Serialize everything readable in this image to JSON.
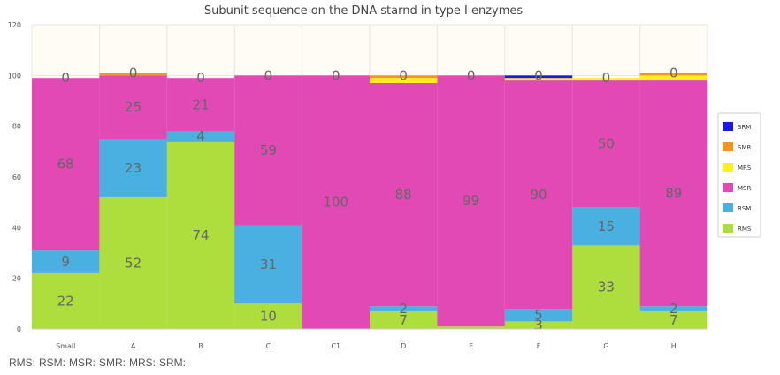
{
  "chart_data": {
    "type": "bar",
    "stacked": true,
    "title": "Subunit sequence on the DNA starnd in type I enzymes",
    "xlabel": "",
    "ylabel": "",
    "ylim": [
      0,
      120
    ],
    "yticks": [
      "0",
      "20",
      "40",
      "60",
      "80",
      "100",
      "120"
    ],
    "categories": [
      "Small",
      "A",
      "B",
      "C",
      "C1",
      "D",
      "E",
      "F",
      "G",
      "H"
    ],
    "legend_position": "right",
    "series": [
      {
        "name": "RMS",
        "color": "#aede3e",
        "values": [
          22,
          52,
          74,
          10,
          0,
          7,
          1,
          3,
          33,
          7
        ]
      },
      {
        "name": "RSM",
        "color": "#4ab0e2",
        "values": [
          9,
          23,
          4,
          31,
          0,
          2,
          0,
          5,
          15,
          2
        ]
      },
      {
        "name": "MSR",
        "color": "#e14ab4",
        "values": [
          68,
          25,
          21,
          59,
          100,
          88,
          99,
          90,
          50,
          89
        ]
      },
      {
        "name": "MRS",
        "color": "#fdf01b",
        "values": [
          0,
          0,
          0,
          0,
          0,
          2,
          0,
          1,
          1,
          2
        ]
      },
      {
        "name": "SMR",
        "color": "#f7941d",
        "values": [
          0,
          1,
          0,
          0,
          0,
          1,
          0,
          0,
          0,
          1
        ]
      },
      {
        "name": "SRM",
        "color": "#1a1ae0",
        "values": [
          0,
          0,
          0,
          0,
          0,
          0,
          0,
          1,
          0,
          0
        ]
      }
    ],
    "labels": [
      {
        "series": "RMS",
        "values": [
          "22",
          "52",
          "74",
          "10",
          "",
          "7",
          "",
          "3",
          "33",
          "7"
        ]
      },
      {
        "series": "RSM",
        "values": [
          "9",
          "23",
          "4",
          "31",
          "",
          "2",
          "",
          "5",
          "15",
          "2"
        ]
      },
      {
        "series": "MSR",
        "values": [
          "68",
          "25",
          "21",
          "59",
          "100",
          "88",
          "99",
          "90",
          "50",
          "89"
        ]
      }
    ],
    "top_labels": [
      "0",
      "0",
      "0",
      "0",
      "0",
      "0",
      "0",
      "0",
      "0",
      "0"
    ]
  },
  "footer": {
    "items": [
      "RMS:",
      "RSM:",
      "MSR:",
      "SMR:",
      "MRS:",
      "SRM:"
    ]
  }
}
